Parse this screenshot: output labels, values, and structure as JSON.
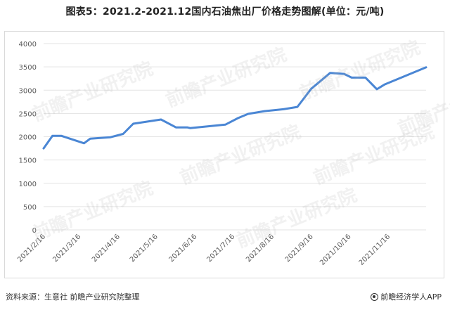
{
  "page": {
    "title": "图表5：2021.2-2021.12国内石油焦出厂价格走势图解(单位：元/吨)",
    "source": "资料来源：生意社 前瞻产业研究院整理",
    "brand": "前瞻经济学人APP",
    "watermark": "前瞻产业研究院"
  },
  "colors": {
    "line": "#4a86d4",
    "grid": "#e3e3e3",
    "axis_text": "#595959"
  },
  "chart_data": {
    "type": "line",
    "title": "图表5：2021.2-2021.12国内石油焦出厂价格走势图解(单位：元/吨)",
    "xlabel": "",
    "ylabel": "",
    "ylim": [
      0,
      4000
    ],
    "yticks": [
      0,
      500,
      1000,
      1500,
      2000,
      2500,
      3000,
      3500,
      4000
    ],
    "xlim": [
      "2021-02-16",
      "2021-12-16"
    ],
    "xticks": [
      "2021/2/16",
      "2021/3/16",
      "2021/4/16",
      "2021/5/16",
      "2021/6/16",
      "2021/7/16",
      "2021/8/16",
      "2021/9/16",
      "2021/10/16",
      "2021/11/16"
    ],
    "grid": "horizontal",
    "legend": "none",
    "series": [
      {
        "points": [
          {
            "x": "2021-02-16",
            "y": 1750
          },
          {
            "x": "2021-02-23",
            "y": 2020
          },
          {
            "x": "2021-03-02",
            "y": 2020
          },
          {
            "x": "2021-03-20",
            "y": 1860
          },
          {
            "x": "2021-03-25",
            "y": 1960
          },
          {
            "x": "2021-04-10",
            "y": 1990
          },
          {
            "x": "2021-04-20",
            "y": 2060
          },
          {
            "x": "2021-04-28",
            "y": 2280
          },
          {
            "x": "2021-05-20",
            "y": 2370
          },
          {
            "x": "2021-06-01",
            "y": 2200
          },
          {
            "x": "2021-06-10",
            "y": 2200
          },
          {
            "x": "2021-06-12",
            "y": 2185
          },
          {
            "x": "2021-07-10",
            "y": 2260
          },
          {
            "x": "2021-07-20",
            "y": 2400
          },
          {
            "x": "2021-07-28",
            "y": 2490
          },
          {
            "x": "2021-08-10",
            "y": 2550
          },
          {
            "x": "2021-08-25",
            "y": 2590
          },
          {
            "x": "2021-09-05",
            "y": 2640
          },
          {
            "x": "2021-09-16",
            "y": 3030
          },
          {
            "x": "2021-10-01",
            "y": 3370
          },
          {
            "x": "2021-10-12",
            "y": 3350
          },
          {
            "x": "2021-10-18",
            "y": 3270
          },
          {
            "x": "2021-10-29",
            "y": 3270
          },
          {
            "x": "2021-11-07",
            "y": 3020
          },
          {
            "x": "2021-11-13",
            "y": 3120
          },
          {
            "x": "2021-12-16",
            "y": 3490
          }
        ]
      }
    ]
  }
}
